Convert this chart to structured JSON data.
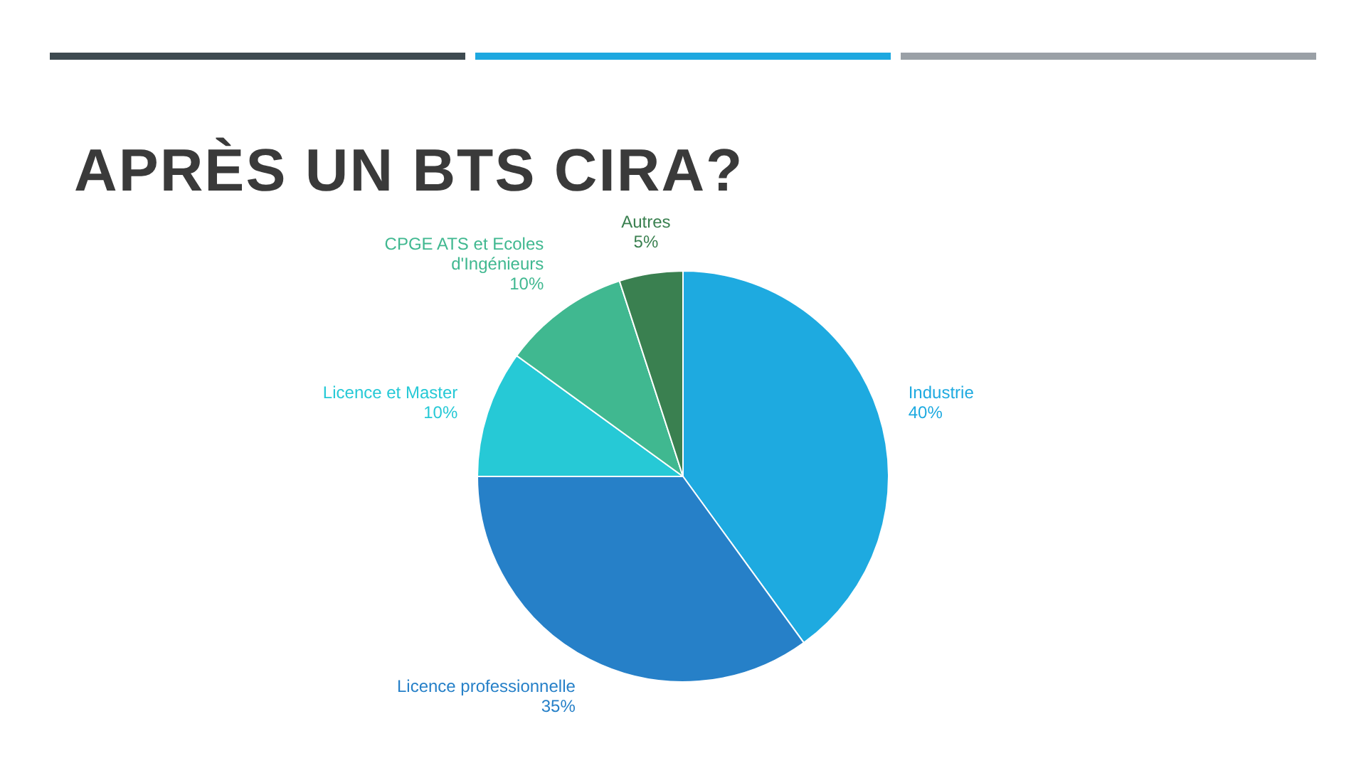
{
  "chart_data": {
    "type": "pie",
    "title": "APRÈS UN BTS CIRA?",
    "categories": [
      "Industrie",
      "Licence professionnelle",
      "Licence et Master",
      "CPGE ATS et Ecoles d'Ingénieurs",
      "Autres"
    ],
    "values": [
      40,
      35,
      10,
      10,
      5
    ],
    "value_labels": [
      "40%",
      "35%",
      "10%",
      "10%",
      "5%"
    ],
    "colors": [
      "#1eaae0",
      "#2680c8",
      "#26c9d6",
      "#40b890",
      "#3a8050"
    ],
    "legend": false
  }
}
